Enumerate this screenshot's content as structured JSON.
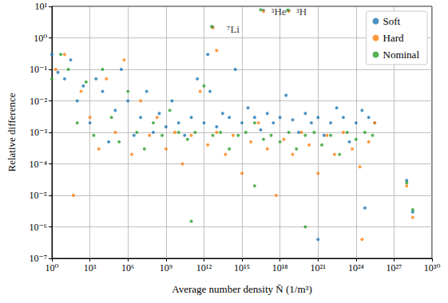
{
  "chart_data": {
    "type": "scatter",
    "xlabel": "Average number density N̄ (1/m³)",
    "ylabel": "Relative difference",
    "log": true,
    "grid": true,
    "legend": "upper right",
    "marker": "circle",
    "xlim": [
      1,
      1e+30
    ],
    "ylim": [
      1e-07,
      10
    ],
    "xticks": [
      {
        "value": 1,
        "label": "10⁰"
      },
      {
        "value": 1000.0,
        "label": "10³"
      },
      {
        "value": 1000000.0,
        "label": "10⁶"
      },
      {
        "value": 1000000000.0,
        "label": "10⁹"
      },
      {
        "value": 1000000000000.0,
        "label": "10¹²"
      },
      {
        "value": 1000000000000000.0,
        "label": "10¹⁵"
      },
      {
        "value": 1e+18,
        "label": "10¹⁸"
      },
      {
        "value": 1e+21,
        "label": "10²¹"
      },
      {
        "value": 1e+24,
        "label": "10²⁴"
      },
      {
        "value": 1e+27,
        "label": "10²⁷"
      },
      {
        "value": 1e+30,
        "label": "10³⁰"
      }
    ],
    "yticks": [
      {
        "value": 1e-07,
        "label": "10⁻⁷"
      },
      {
        "value": 1e-06,
        "label": "10⁻⁶"
      },
      {
        "value": 1e-05,
        "label": "10⁻⁵"
      },
      {
        "value": 0.0001,
        "label": "10⁻⁴"
      },
      {
        "value": 0.001,
        "label": "10⁻³"
      },
      {
        "value": 0.01,
        "label": "10⁻²"
      },
      {
        "value": 0.1,
        "label": "10⁻¹"
      },
      {
        "value": 1,
        "label": "10⁰"
      },
      {
        "value": 10,
        "label": "10¹"
      }
    ],
    "annotations": [
      {
        "text": "⁷Li",
        "x": 200000000000000.0,
        "y": 1.9
      },
      {
        "text": "³He",
        "x": 8e+17,
        "y": 7
      },
      {
        "text": "³H",
        "x": 5e+19,
        "y": 7
      }
    ],
    "series": [
      {
        "name": "Soft",
        "color": "#1f77b4",
        "x": [
          1,
          3,
          10,
          30,
          100,
          300,
          1000,
          3000,
          10000.0,
          30000.0,
          100000.0,
          300000.0,
          1000000.0,
          3000000.0,
          10000000.0,
          30000000.0,
          100000000.0,
          300000000.0,
          1000000000.0,
          3000000000.0,
          10000000000.0,
          30000000000.0,
          100000000000.0,
          300000000000.0,
          1000000000000.0,
          3000000000000.0,
          10000000000000.0,
          30000000000000.0,
          100000000000000.0,
          300000000000000.0,
          1000000000000000.0,
          3000000000000000.0,
          1e+16,
          3e+16,
          1e+17,
          3e+17,
          1e+18,
          3e+18,
          1e+19,
          3e+19,
          1e+20,
          3e+20,
          1e+21,
          3e+21,
          1e+22,
          3e+22,
          1e+23,
          3e+23,
          1e+24,
          3e+24,
          1e+25,
          3e+25,
          5e+24,
          1e+28,
          3e+28,
          5e+16,
          5e+18,
          2000000000000.0,
          5000000000000.0,
          1e+21
        ],
        "values": [
          0.3,
          0.08,
          0.05,
          0.2,
          0.01,
          0.03,
          0.002,
          0.05,
          0.02,
          0.0005,
          0.005,
          0.1,
          0.01,
          0.0008,
          0.003,
          0.02,
          0.001,
          0.004,
          0.0015,
          0.01,
          0.002,
          0.0008,
          0.003,
          0.05,
          0.002,
          0.02,
          0.0015,
          0.004,
          0.003,
          0.1,
          0.002,
          0.006,
          0.003,
          0.0012,
          0.004,
          0.002,
          0.003,
          0.015,
          0.0025,
          0.001,
          0.004,
          0.002,
          0.003,
          0.0008,
          0.002,
          0.006,
          0.003,
          0.0005,
          0.002,
          0.005,
          0.003,
          0.002,
          4e-06,
          3e-05,
          3e-06,
          7.5,
          7.5,
          0.3,
          2.2,
          4e-07
        ]
      },
      {
        "name": "Hard",
        "color": "#ff7f0e",
        "x": [
          2,
          10,
          50,
          200,
          1000,
          5000,
          20000.0,
          100000.0,
          500000.0,
          2000000.0,
          10000000.0,
          50000000.0,
          200000000.0,
          1000000000.0,
          5000000000.0,
          20000000000.0,
          100000000000.0,
          500000000000.0,
          2000000000000.0,
          10000000000000.0,
          50000000000000.0,
          200000000000000.0,
          1000000000000000.0,
          5000000000000000.0,
          2e+16,
          1e+17,
          5e+17,
          2e+18,
          1e+19,
          5e+19,
          2e+20,
          1e+21,
          5e+21,
          2e+22,
          1e+23,
          5e+23,
          2e+24,
          1e+25,
          3e+25,
          1e+28,
          3e+28,
          3e+24,
          5e+16,
          5e+18,
          5000000000000.0,
          10000000000000.0
        ],
        "values": [
          0.1,
          0.3,
          1e-05,
          0.02,
          0.003,
          0.0003,
          0.05,
          0.001,
          0.2,
          0.0002,
          0.01,
          0.0008,
          0.003,
          0.0003,
          0.001,
          0.0001,
          0.0008,
          0.02,
          0.0004,
          0.001,
          0.0002,
          0.0008,
          5e-05,
          0.0005,
          0.002,
          0.0003,
          1e-05,
          0.0006,
          0.0002,
          0.001,
          0.0004,
          5e-05,
          0.0008,
          0.0002,
          0.001,
          0.0003,
          8e-05,
          0.0005,
          0.002,
          2e-05,
          2e-06,
          4e-07,
          7,
          7,
          2.1,
          0.4
        ]
      },
      {
        "name": "Nominal",
        "color": "#2ca02c",
        "x": [
          1,
          5,
          20,
          100,
          500,
          2000,
          10000.0,
          50000.0,
          200000.0,
          1000000.0,
          5000000.0,
          20000000.0,
          100000000.0,
          500000000.0,
          2000000000.0,
          10000000000.0,
          50000000000.0,
          200000000000.0,
          1000000000000.0,
          5000000000000.0,
          20000000000000.0,
          100000000000000.0,
          500000000000000.0,
          2000000000000000.0,
          1e+16,
          5e+16,
          2e+17,
          1e+18,
          5e+18,
          2e+19,
          1e+20,
          5e+20,
          2e+21,
          1e+22,
          5e+22,
          2e+23,
          1e+24,
          5e+24,
          2e+25,
          1e+28,
          3e+28,
          100000000000.0,
          1e+16,
          4000000000000.0,
          3e+16,
          4e+18,
          1e+20
        ],
        "values": [
          0.05,
          0.3,
          0.1,
          0.002,
          0.04,
          0.0008,
          0.1,
          0.003,
          0.0005,
          0.02,
          0.001,
          0.0003,
          0.002,
          0.0008,
          0.005,
          0.001,
          0.0006,
          0.001,
          0.03,
          0.0008,
          0.001,
          0.0003,
          0.0008,
          0.001,
          0.002,
          0.0006,
          0.0008,
          0.0005,
          0.001,
          0.0003,
          0.0008,
          0.001,
          0.0004,
          0.0008,
          0.0002,
          0.001,
          0.0006,
          0.001,
          0.0008,
          2.5e-05,
          3.5e-06,
          1.5e-06,
          2e-05,
          2.3,
          7.8,
          7.6,
          1e-06
        ]
      }
    ]
  }
}
